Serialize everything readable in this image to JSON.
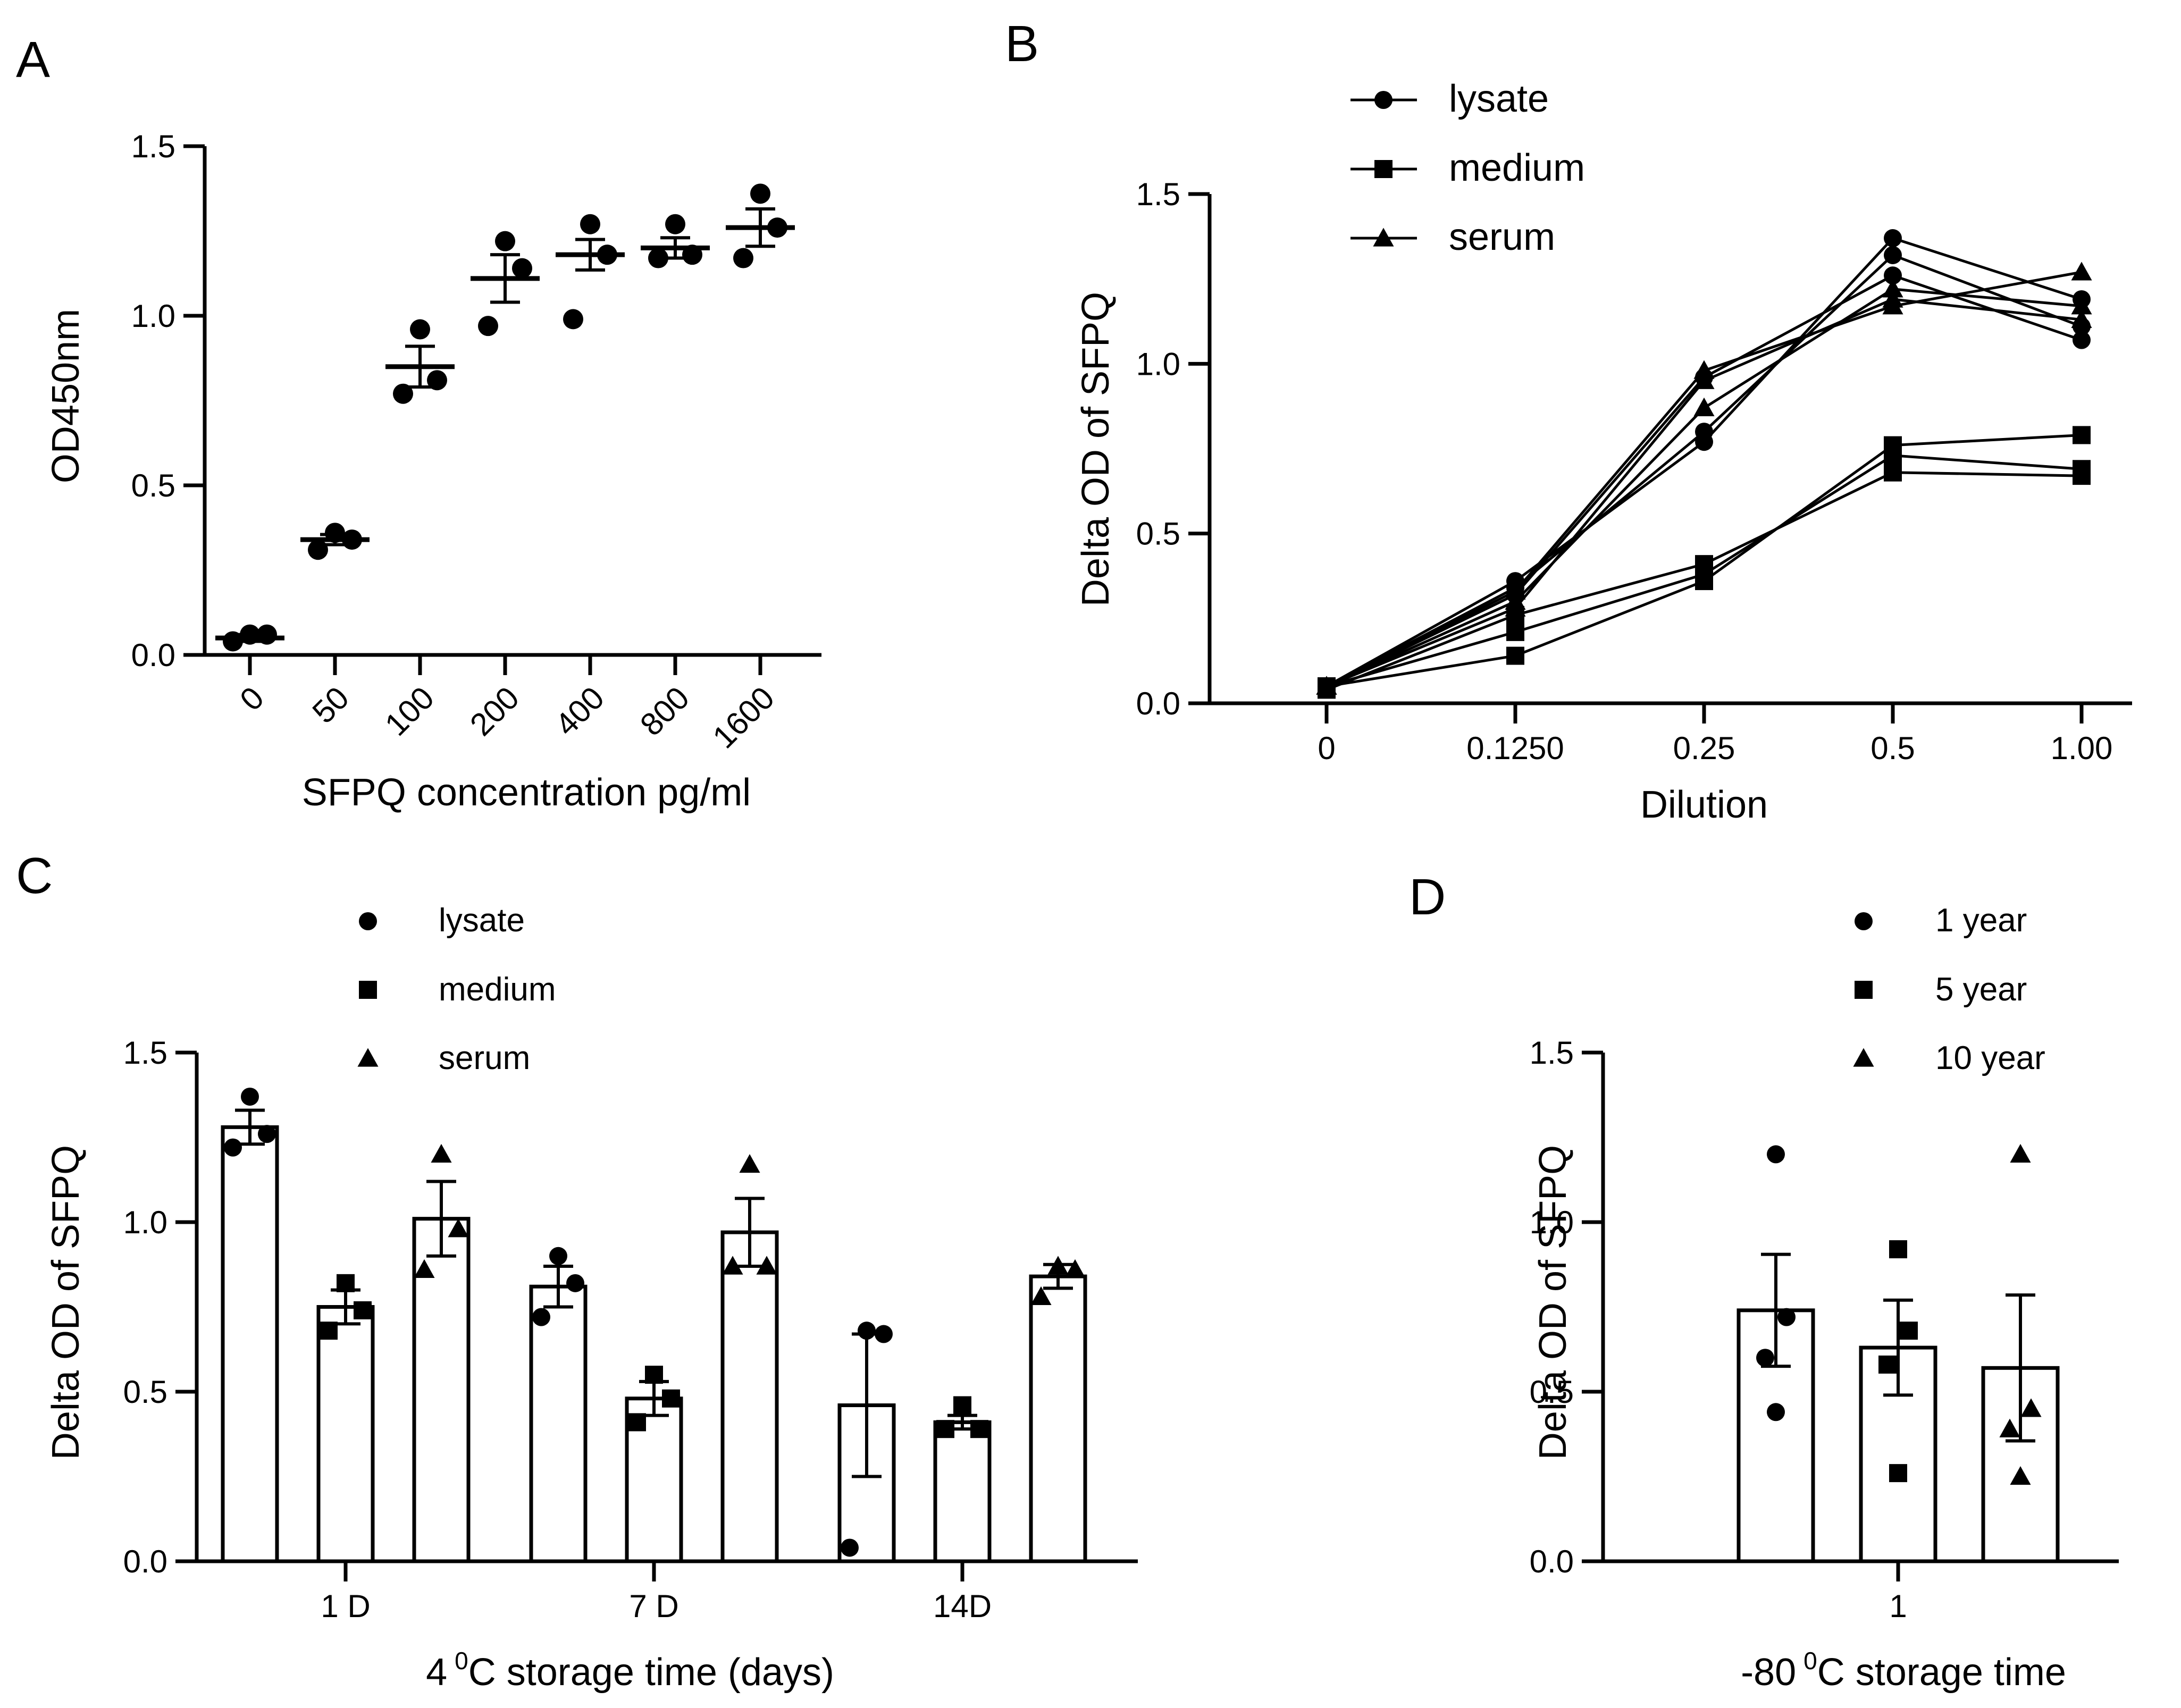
{
  "figure": {
    "panels": [
      {
        "letter": "A"
      },
      {
        "letter": "B"
      },
      {
        "letter": "C"
      },
      {
        "letter": "D"
      }
    ]
  },
  "chart_data": [
    {
      "panel": "A",
      "type": "scatter",
      "title": "",
      "xlabel": "SFPQ concentration pg/ml",
      "ylabel": "OD450nm",
      "ylim": [
        0,
        1.5
      ],
      "yticks": [
        "0.0",
        "0.5",
        "1.0",
        "1.5"
      ],
      "ytick_values": [
        0,
        0.5,
        1.0,
        1.5
      ],
      "categories": [
        "0",
        "50",
        "100",
        "200",
        "400",
        "800",
        "1600"
      ],
      "points": [
        [
          0.04,
          0.06,
          0.06
        ],
        [
          0.31,
          0.36,
          0.34
        ],
        [
          0.77,
          0.96,
          0.81
        ],
        [
          0.97,
          1.22,
          1.14
        ],
        [
          0.99,
          1.27,
          1.18
        ],
        [
          1.17,
          1.27,
          1.18
        ],
        [
          1.17,
          1.36,
          1.26
        ]
      ],
      "mean": [
        0.05,
        0.34,
        0.85,
        1.11,
        1.18,
        1.2,
        1.26
      ],
      "sem": [
        0.01,
        0.015,
        0.06,
        0.07,
        0.045,
        0.03,
        0.055
      ]
    },
    {
      "panel": "B",
      "type": "line",
      "title": "",
      "xlabel": "Dilution",
      "ylabel": "Delta OD of SFPQ",
      "ylim": [
        0,
        1.5
      ],
      "yticks": [
        "0.0",
        "0.5",
        "1.0",
        "1.5"
      ],
      "ytick_values": [
        0,
        0.5,
        1.0,
        1.5
      ],
      "x": [
        "0",
        "0.1250",
        "0.25",
        "0.5",
        "1.00"
      ],
      "legend": {
        "position": "top-left",
        "entries": [
          {
            "label": "lysate",
            "marker": "circle"
          },
          {
            "label": "medium",
            "marker": "square"
          },
          {
            "label": "serum",
            "marker": "triangle"
          }
        ]
      },
      "series": [
        {
          "name": "lysate",
          "marker": "circle",
          "values": [
            0.05,
            0.36,
            0.77,
            1.37,
            1.19
          ]
        },
        {
          "name": "lysate",
          "marker": "circle",
          "values": [
            0.05,
            0.34,
            0.8,
            1.32,
            1.11
          ]
        },
        {
          "name": "lysate",
          "marker": "circle",
          "values": [
            0.05,
            0.32,
            0.96,
            1.26,
            1.07
          ]
        },
        {
          "name": "medium",
          "marker": "square",
          "values": [
            0.05,
            0.14,
            0.36,
            0.76,
            0.79
          ]
        },
        {
          "name": "medium",
          "marker": "square",
          "values": [
            0.05,
            0.21,
            0.38,
            0.73,
            0.69
          ]
        },
        {
          "name": "medium",
          "marker": "square",
          "values": [
            0.04,
            0.26,
            0.41,
            0.68,
            0.67
          ]
        },
        {
          "name": "serum",
          "marker": "triangle",
          "values": [
            0.05,
            0.33,
            0.98,
            1.17,
            1.27
          ]
        },
        {
          "name": "serum",
          "marker": "triangle",
          "values": [
            0.05,
            0.3,
            0.87,
            1.22,
            1.17
          ]
        },
        {
          "name": "serum",
          "marker": "triangle",
          "values": [
            0.05,
            0.28,
            0.95,
            1.19,
            1.13
          ]
        }
      ]
    },
    {
      "panel": "C",
      "type": "bar",
      "title": "",
      "xlabel_prefix": "4",
      "xlabel_sup": "0",
      "xlabel_suffix": "C storage time (days)",
      "ylabel": "Delta OD of SFPQ",
      "ylim": [
        0,
        1.5
      ],
      "yticks": [
        "0.0",
        "0.5",
        "1.0",
        "1.5"
      ],
      "ytick_values": [
        0,
        0.5,
        1.0,
        1.5
      ],
      "categories": [
        "1 D",
        "7 D",
        "14D"
      ],
      "legend": {
        "position": "top-center",
        "entries": [
          {
            "label": "lysate",
            "marker": "circle"
          },
          {
            "label": "medium",
            "marker": "square"
          },
          {
            "label": "serum",
            "marker": "triangle"
          }
        ]
      },
      "series": [
        {
          "name": "lysate",
          "marker": "circle",
          "values": [
            1.28,
            0.81,
            0.46
          ],
          "sem": [
            0.05,
            0.06,
            0.21
          ],
          "points": [
            [
              1.37,
              1.22,
              1.26
            ],
            [
              0.9,
              0.72,
              0.82
            ],
            [
              0.68,
              0.04,
              0.67
            ]
          ]
        },
        {
          "name": "medium",
          "marker": "square",
          "values": [
            0.75,
            0.48,
            0.41
          ],
          "sem": [
            0.05,
            0.05,
            0.02
          ],
          "points": [
            [
              0.82,
              0.68,
              0.74
            ],
            [
              0.55,
              0.41,
              0.48
            ],
            [
              0.46,
              0.39,
              0.39
            ]
          ]
        },
        {
          "name": "serum",
          "marker": "triangle",
          "values": [
            1.01,
            0.97,
            0.84
          ],
          "sem": [
            0.11,
            0.1,
            0.035
          ],
          "points": [
            [
              1.2,
              0.86,
              0.98
            ],
            [
              1.17,
              0.87,
              0.87
            ],
            [
              0.87,
              0.78,
              0.86
            ]
          ]
        }
      ]
    },
    {
      "panel": "D",
      "type": "bar",
      "title": "",
      "xlabel_prefix": "-80",
      "xlabel_sup": "0",
      "xlabel_suffix": "C storage time",
      "ylabel": "Delta OD of SFPQ",
      "ylim": [
        0,
        1.5
      ],
      "yticks": [
        "0.0",
        "0.5",
        "1.0",
        "1.5"
      ],
      "ytick_values": [
        0,
        0.5,
        1.0,
        1.5
      ],
      "categories": [
        "1"
      ],
      "legend": {
        "position": "top-center",
        "entries": [
          {
            "label": "1 year",
            "marker": "circle"
          },
          {
            "label": "5 year",
            "marker": "square"
          },
          {
            "label": "10 year",
            "marker": "triangle"
          }
        ]
      },
      "series": [
        {
          "name": "1 year",
          "marker": "circle",
          "values": [
            0.74
          ],
          "sem": [
            0.165
          ],
          "points": [
            [
              1.2,
              0.44,
              0.6,
              0.72
            ]
          ]
        },
        {
          "name": "5 year",
          "marker": "square",
          "values": [
            0.63
          ],
          "sem": [
            0.14
          ],
          "points": [
            [
              0.92,
              0.26,
              0.58,
              0.68
            ]
          ]
        },
        {
          "name": "10 year",
          "marker": "triangle",
          "values": [
            0.57
          ],
          "sem": [
            0.215
          ],
          "points": [
            [
              1.2,
              0.25,
              0.39,
              0.45
            ]
          ]
        }
      ]
    }
  ]
}
